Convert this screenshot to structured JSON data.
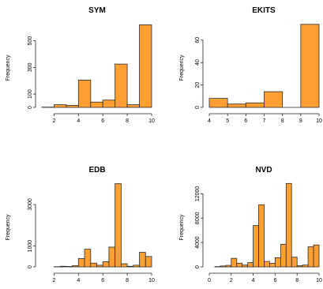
{
  "colors": {
    "bar_fill": "#ff9f32",
    "bar_stroke": "#2b2b2b",
    "axis": "#222222"
  },
  "chart_data": [
    {
      "type": "bar",
      "title": "SYM",
      "ylabel": "Frequency",
      "xlabel": "",
      "bins": [
        [
          1,
          2
        ],
        [
          2,
          3
        ],
        [
          3,
          4
        ],
        [
          4,
          5
        ],
        [
          5,
          6
        ],
        [
          6,
          7
        ],
        [
          7,
          8
        ],
        [
          8,
          9
        ],
        [
          9,
          10
        ]
      ],
      "values": [
        2,
        20,
        15,
        205,
        40,
        55,
        325,
        20,
        620
      ],
      "xlim": [
        1,
        10
      ],
      "ylim": [
        0,
        640
      ],
      "xticks": [
        2,
        4,
        6,
        8,
        10
      ],
      "yticks": [
        0,
        100,
        300,
        500
      ],
      "grid": false
    },
    {
      "type": "bar",
      "title": "EKITS",
      "ylabel": "Frequency",
      "xlabel": "",
      "bins": [
        [
          4,
          5
        ],
        [
          5,
          6
        ],
        [
          6,
          7
        ],
        [
          7,
          8
        ],
        [
          8,
          9
        ],
        [
          9,
          10
        ]
      ],
      "values": [
        8,
        3,
        4,
        14,
        0,
        74
      ],
      "xlim": [
        4,
        10
      ],
      "ylim": [
        0,
        76
      ],
      "xticks": [
        4,
        5,
        6,
        7,
        8,
        9,
        10
      ],
      "yticks": [
        0,
        20,
        40,
        60
      ],
      "grid": false
    },
    {
      "type": "bar",
      "title": "EDB",
      "ylabel": "Frequency",
      "xlabel": "",
      "bins": [
        [
          2,
          2.5
        ],
        [
          2.5,
          3
        ],
        [
          3,
          3.5
        ],
        [
          3.5,
          4
        ],
        [
          4,
          4.5
        ],
        [
          4.5,
          5
        ],
        [
          5,
          5.5
        ],
        [
          5.5,
          6
        ],
        [
          6,
          6.5
        ],
        [
          6.5,
          7
        ],
        [
          7,
          7.5
        ],
        [
          7.5,
          8
        ],
        [
          8,
          8.5
        ],
        [
          8.5,
          9
        ],
        [
          9,
          9.5
        ],
        [
          9.5,
          10
        ]
      ],
      "values": [
        10,
        30,
        20,
        60,
        400,
        850,
        180,
        80,
        250,
        950,
        4000,
        150,
        30,
        80,
        700,
        500
      ],
      "xlim": [
        1,
        10
      ],
      "ylim": [
        0,
        4100
      ],
      "xticks": [
        2,
        4,
        6,
        8,
        10
      ],
      "yticks": [
        0,
        1000,
        3000
      ],
      "grid": false
    },
    {
      "type": "bar",
      "title": "NVD",
      "ylabel": "Frequency",
      "xlabel": "",
      "bins": [
        [
          0.5,
          1
        ],
        [
          1,
          1.5
        ],
        [
          1.5,
          2
        ],
        [
          2,
          2.5
        ],
        [
          2.5,
          3
        ],
        [
          3,
          3.5
        ],
        [
          3.5,
          4
        ],
        [
          4,
          4.5
        ],
        [
          4.5,
          5
        ],
        [
          5,
          5.5
        ],
        [
          5.5,
          6
        ],
        [
          6,
          6.5
        ],
        [
          6.5,
          7
        ],
        [
          7,
          7.5
        ],
        [
          7.5,
          8
        ],
        [
          8,
          8.5
        ],
        [
          8.5,
          9
        ],
        [
          9,
          9.5
        ],
        [
          9.5,
          10
        ]
      ],
      "values": [
        50,
        150,
        250,
        1400,
        600,
        300,
        700,
        6800,
        10200,
        900,
        600,
        1500,
        3700,
        13700,
        1600,
        200,
        300,
        3300,
        3600
      ],
      "xlim": [
        0,
        10
      ],
      "ylim": [
        0,
        14000
      ],
      "xticks": [
        0,
        2,
        4,
        6,
        8,
        10
      ],
      "yticks": [
        0,
        4000,
        8000,
        12000
      ],
      "grid": false
    }
  ]
}
